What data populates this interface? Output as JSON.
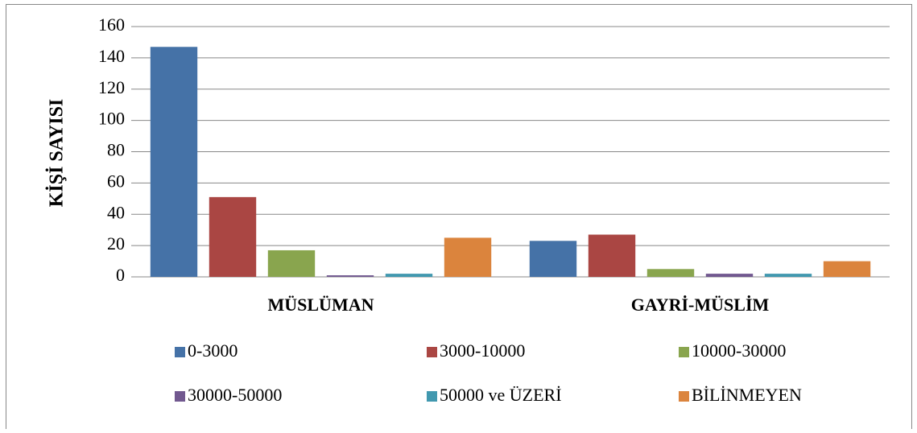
{
  "chart_data": {
    "type": "bar",
    "y_label": "KİŞİ SAYISI",
    "categories": [
      "MÜSLÜMAN",
      "GAYRİ-MÜSLİM"
    ],
    "series": [
      {
        "name": "0-3000",
        "color": "#4572a7",
        "values": [
          147,
          23
        ]
      },
      {
        "name": "3000-10000",
        "color": "#aa4643",
        "values": [
          51,
          27
        ]
      },
      {
        "name": "10000-30000",
        "color": "#89a54e",
        "values": [
          17,
          5
        ]
      },
      {
        "name": "30000-50000",
        "color": "#71588f",
        "values": [
          1,
          2
        ]
      },
      {
        "name": "50000 ve ÜZERİ",
        "color": "#4198af",
        "values": [
          2,
          2
        ]
      },
      {
        "name": "BİLİNMEYEN",
        "color": "#db843d",
        "values": [
          25,
          10
        ]
      }
    ],
    "ylim": [
      0,
      160
    ],
    "yticks": [
      0,
      20,
      40,
      60,
      80,
      100,
      120,
      140,
      160
    ],
    "grid": true,
    "legend": "bottom"
  }
}
